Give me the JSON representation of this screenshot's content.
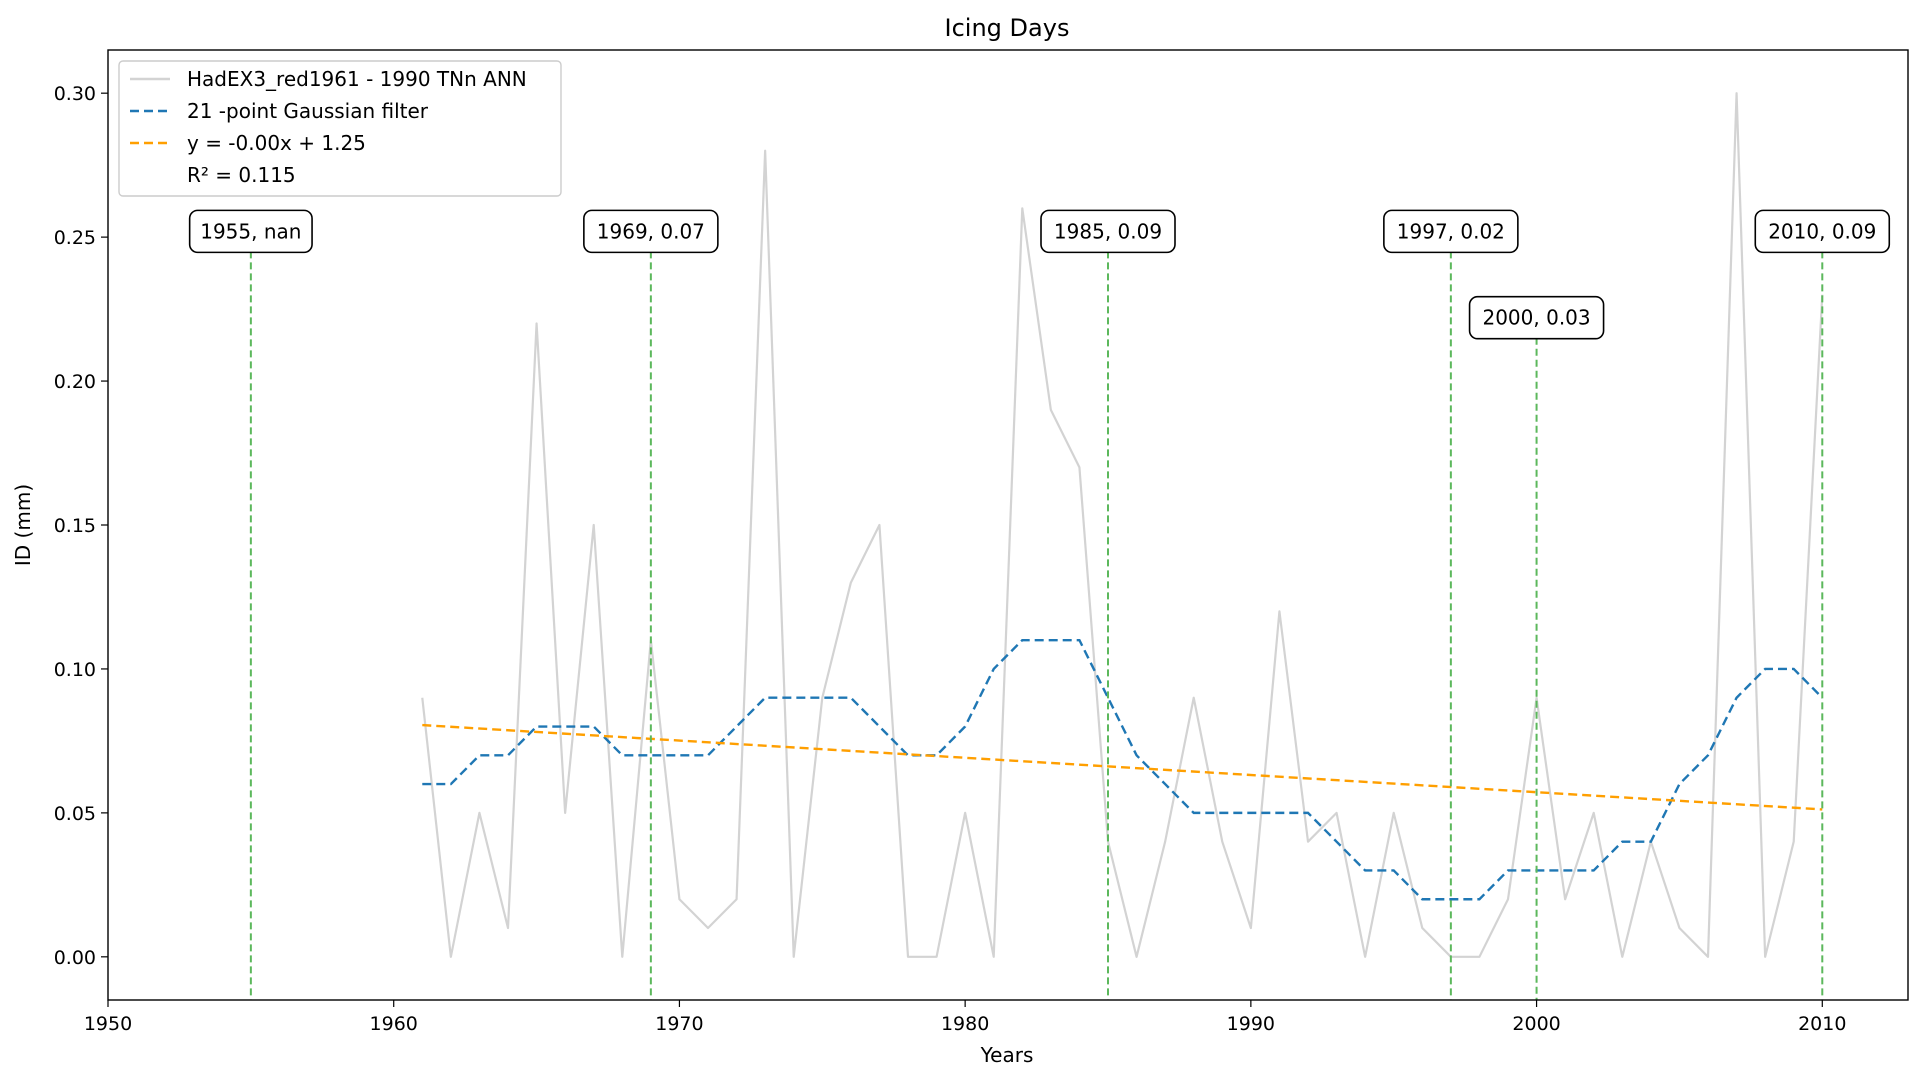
{
  "chart_data": {
    "type": "line",
    "title": "Icing Days",
    "xlabel": "Years",
    "ylabel": "ID (mm)",
    "xlim": [
      1950,
      2013
    ],
    "ylim": [
      -0.015,
      0.315
    ],
    "xticks": [
      1950,
      1960,
      1970,
      1980,
      1990,
      2000,
      2010
    ],
    "yticks": [
      0.0,
      0.05,
      0.1,
      0.15,
      0.2,
      0.25,
      0.3
    ],
    "ytick_labels": [
      "0.00",
      "0.05",
      "0.10",
      "0.15",
      "0.20",
      "0.25",
      "0.30"
    ],
    "legend_position": "top-left",
    "x": [
      1961,
      1962,
      1963,
      1964,
      1965,
      1966,
      1967,
      1968,
      1969,
      1970,
      1971,
      1972,
      1973,
      1974,
      1975,
      1976,
      1977,
      1978,
      1979,
      1980,
      1981,
      1982,
      1983,
      1984,
      1985,
      1986,
      1987,
      1988,
      1989,
      1990,
      1991,
      1992,
      1993,
      1994,
      1995,
      1996,
      1997,
      1998,
      1999,
      2000,
      2001,
      2002,
      2003,
      2004,
      2005,
      2006,
      2007,
      2008,
      2009,
      2010
    ],
    "series": [
      {
        "name": "HadEX3_red1961 - 1990 TNn ANN",
        "color": "#d3d3d3",
        "style": "solid",
        "values": [
          0.09,
          0.0,
          0.05,
          0.01,
          0.22,
          0.05,
          0.15,
          0.0,
          0.11,
          0.02,
          0.01,
          0.02,
          0.28,
          0.0,
          0.09,
          0.13,
          0.15,
          0.0,
          0.0,
          0.05,
          0.0,
          0.26,
          0.19,
          0.17,
          0.04,
          0.0,
          0.04,
          0.09,
          0.04,
          0.01,
          0.12,
          0.04,
          0.05,
          0.0,
          0.05,
          0.01,
          0.0,
          0.0,
          0.02,
          0.09,
          0.02,
          0.05,
          0.0,
          0.04,
          0.01,
          0.0,
          0.3,
          0.0,
          0.04,
          0.23
        ]
      },
      {
        "name": "21 -point Gaussian filter",
        "color": "#1f77b4",
        "style": "dashed",
        "values": [
          0.06,
          0.06,
          0.07,
          0.07,
          0.08,
          0.08,
          0.08,
          0.07,
          0.07,
          0.07,
          0.07,
          0.08,
          0.09,
          0.09,
          0.09,
          0.09,
          0.08,
          0.07,
          0.07,
          0.08,
          0.1,
          0.11,
          0.11,
          0.11,
          0.09,
          0.07,
          0.06,
          0.05,
          0.05,
          0.05,
          0.05,
          0.05,
          0.04,
          0.03,
          0.03,
          0.02,
          0.02,
          0.02,
          0.03,
          0.03,
          0.03,
          0.03,
          0.04,
          0.04,
          0.06,
          0.07,
          0.09,
          0.1,
          0.1,
          0.09
        ]
      },
      {
        "name": "y = -0.00x + 1.25",
        "color": "#ff9f00",
        "style": "dashed",
        "x": [
          1961,
          2010
        ],
        "values": [
          0.0805,
          0.0512
        ]
      }
    ],
    "legend_extra": "R² = 0.115",
    "markers": [
      {
        "x": 1955,
        "label": "1955, nan",
        "label_y": 0.252
      },
      {
        "x": 1969,
        "label": "1969, 0.07",
        "label_y": 0.252
      },
      {
        "x": 1985,
        "label": "1985, 0.09",
        "label_y": 0.252
      },
      {
        "x": 1997,
        "label": "1997, 0.02",
        "label_y": 0.252
      },
      {
        "x": 2000,
        "label": "2000, 0.03",
        "label_y": 0.222
      },
      {
        "x": 2010,
        "label": "2010, 0.09",
        "label_y": 0.252
      }
    ],
    "marker_color": "#5cb85c"
  }
}
